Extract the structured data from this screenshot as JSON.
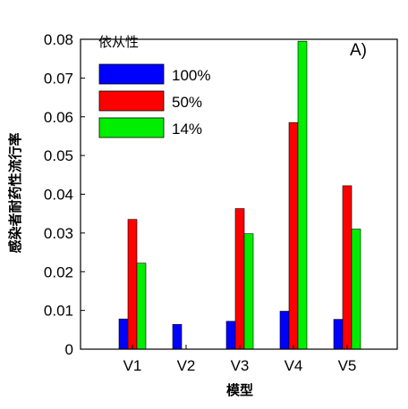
{
  "chart_data": {
    "type": "bar",
    "title": "",
    "panel_label": "A)",
    "xlabel": "模型",
    "ylabel": "感染者耐药性流行率",
    "categories": [
      "V1",
      "V2",
      "V3",
      "V4",
      "V5"
    ],
    "ylim": [
      0,
      0.08
    ],
    "yticks": [
      0,
      0.01,
      0.02,
      0.03,
      0.04,
      0.05,
      0.06,
      0.07,
      0.08
    ],
    "ytick_labels": [
      "0",
      "0.01",
      "0.02",
      "0.03",
      "0.04",
      "0.05",
      "0.06",
      "0.07",
      "0.08"
    ],
    "legend_title": "依从性",
    "legend_position": "top-left",
    "grid": false,
    "series": [
      {
        "name": "100%",
        "color": "#0000ff",
        "values": [
          0.0078,
          0.0064,
          0.0072,
          0.0098,
          0.0077
        ]
      },
      {
        "name": "50%",
        "color": "#ff0000",
        "values": [
          0.0335,
          0,
          0.0363,
          0.0585,
          0.0422
        ]
      },
      {
        "name": "14%",
        "color": "#00ee00",
        "values": [
          0.0222,
          0,
          0.0298,
          0.0795,
          0.031
        ]
      }
    ]
  }
}
